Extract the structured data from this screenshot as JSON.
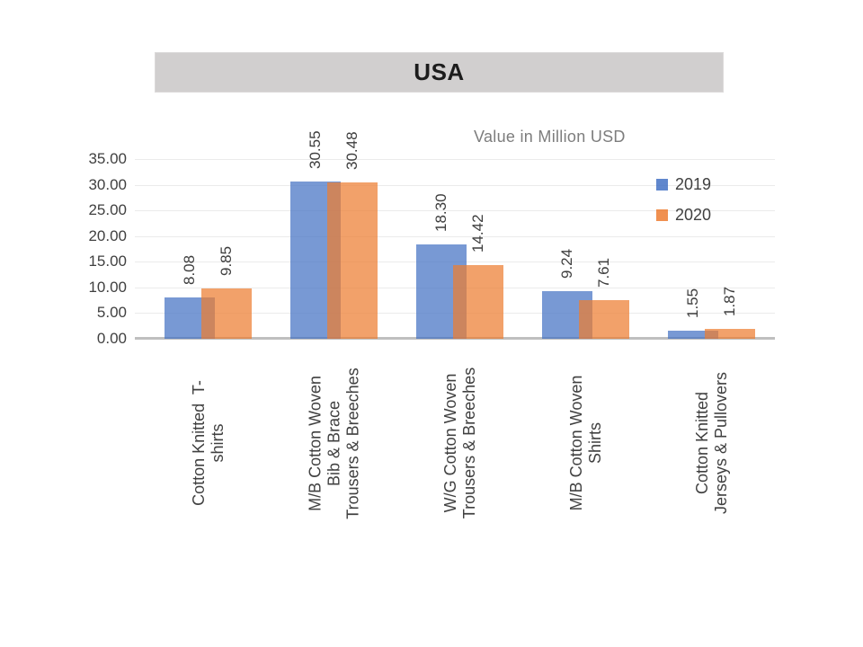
{
  "chart_data": {
    "type": "bar",
    "title": "USA",
    "note": "Value in Million USD",
    "categories": [
      {
        "name": "Cotton Knitted T-shirts",
        "lines": [
          "Cotton Knitted  T-",
          "shirts"
        ]
      },
      {
        "name": "M/B Cotton Woven Bib & Brace Trousers & Breeches",
        "lines": [
          "M/B Cotton Woven",
          "Bib & Brace",
          "Trousers & Breeches"
        ]
      },
      {
        "name": "W/G Cotton Woven Trousers & Breeches",
        "lines": [
          "W/G Cotton Woven",
          "Trousers & Breeches"
        ]
      },
      {
        "name": "M/B Cotton Woven Shirts",
        "lines": [
          "M/B Cotton Woven",
          "Shirts"
        ]
      },
      {
        "name": "Cotton Knitted Jerseys & Pullovers",
        "lines": [
          "Cotton Knitted",
          "Jerseys & Pullovers"
        ]
      }
    ],
    "series": [
      {
        "name": "2019",
        "color": "#4472C4",
        "values": [
          8.08,
          30.55,
          18.3,
          9.24,
          1.55
        ]
      },
      {
        "name": "2020",
        "color": "#ED7D31",
        "values": [
          9.85,
          30.48,
          14.42,
          7.61,
          1.87
        ]
      }
    ],
    "ylim": [
      0,
      35
    ],
    "ytick_step": 5,
    "ytick_decimals": 2,
    "value_label_decimals": 2,
    "grid": true,
    "legend_position": "top-right",
    "bar_opacity": 0.72,
    "legend_swatch_opacity": 0.85
  }
}
